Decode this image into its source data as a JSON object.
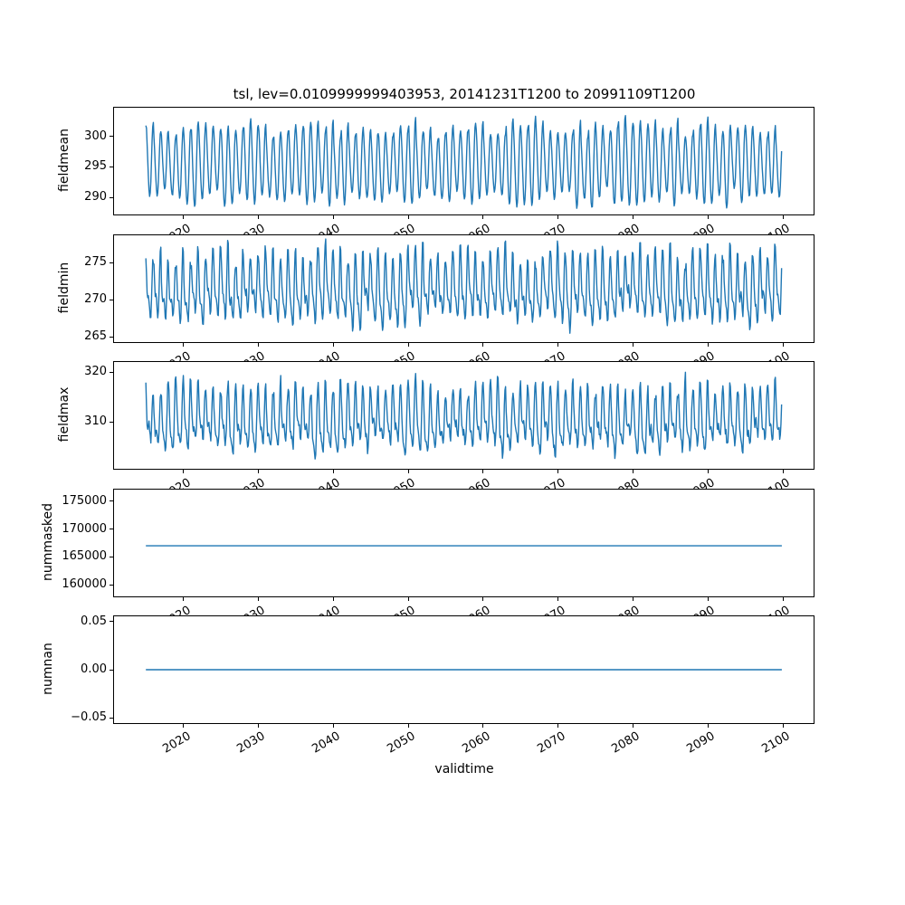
{
  "figure": {
    "title": "tsl, lev=0.0109999999403953, 20141231T1200 to 20991109T1200",
    "xlabel": "validtime",
    "background": "#ffffff",
    "line_color": "#1f77b4",
    "axes_border_color": "#000000",
    "text_color": "#000000"
  },
  "x_axis": {
    "tick_labels": [
      "2020",
      "2030",
      "2040",
      "2050",
      "2060",
      "2070",
      "2080",
      "2090",
      "2100"
    ],
    "tick_values": [
      2020,
      2030,
      2040,
      2050,
      2060,
      2070,
      2080,
      2090,
      2100
    ],
    "xlim": [
      2010.75,
      2104.1
    ],
    "data_start": 2014.997,
    "data_end": 2099.863,
    "tick_rotation_deg": 30
  },
  "chart_data": [
    {
      "type": "line",
      "ylabel": "fieldmean",
      "ytick_labels": [
        "290",
        "295",
        "300"
      ],
      "ytick_values": [
        290,
        295,
        300
      ],
      "ylim": [
        287.2,
        304.7
      ],
      "series": {
        "name": "fieldmean",
        "pattern": "annual_cycle",
        "points_per_year": 12,
        "seed": 11,
        "base": 295.6,
        "base_jitter": 0.8,
        "amplitude": 5.9,
        "amplitude_jitter": 1.3,
        "harmonic2": 0.35,
        "h2_phase": 1.2,
        "noise": 0.25,
        "clip": [
          288.1,
          303.8
        ],
        "observed_min": 288.3,
        "observed_max": 303.6
      }
    },
    {
      "type": "line",
      "ylabel": "fieldmin",
      "ytick_labels": [
        "265",
        "270",
        "275"
      ],
      "ytick_values": [
        265,
        270,
        275
      ],
      "ylim": [
        264.3,
        278.7
      ],
      "series": {
        "name": "fieldmin",
        "pattern": "annual_cycle",
        "points_per_year": 12,
        "seed": 22,
        "base": 271.4,
        "base_jitter": 0.9,
        "amplitude": 3.6,
        "amplitude_jitter": 1.1,
        "harmonic2": 1.7,
        "h2_phase": 0.9,
        "noise": 0.55,
        "clip": [
          264.9,
          278.2
        ],
        "observed_min": 265.0,
        "observed_max": 278.0
      }
    },
    {
      "type": "line",
      "ylabel": "fieldmax",
      "ytick_labels": [
        "310",
        "320"
      ],
      "ytick_values": [
        310,
        320
      ],
      "ylim": [
        300.5,
        322.1
      ],
      "series": {
        "name": "fieldmax",
        "pattern": "annual_cycle",
        "points_per_year": 12,
        "seed": 33,
        "base": 310.2,
        "base_jitter": 1.1,
        "amplitude": 5.0,
        "amplitude_jitter": 1.7,
        "harmonic2": 2.3,
        "h2_phase": 0.7,
        "noise": 0.9,
        "clip": [
          301.9,
          321.1
        ],
        "observed_min": 302.0,
        "observed_max": 321.0
      }
    },
    {
      "type": "line",
      "ylabel": "nummasked",
      "ytick_labels": [
        "160000",
        "165000",
        "170000",
        "175000"
      ],
      "ytick_values": [
        160000,
        165000,
        170000,
        175000
      ],
      "ylim": [
        157900,
        177100
      ],
      "series": {
        "name": "nummasked",
        "pattern": "constant",
        "constant": 167000
      }
    },
    {
      "type": "line",
      "ylabel": "numnan",
      "ytick_labels": [
        "−0.05",
        "0.00",
        "0.05"
      ],
      "ytick_values": [
        -0.05,
        0,
        0.05
      ],
      "ylim": [
        -0.0555,
        0.0555
      ],
      "series": {
        "name": "numnan",
        "pattern": "constant",
        "constant": 0
      }
    }
  ]
}
